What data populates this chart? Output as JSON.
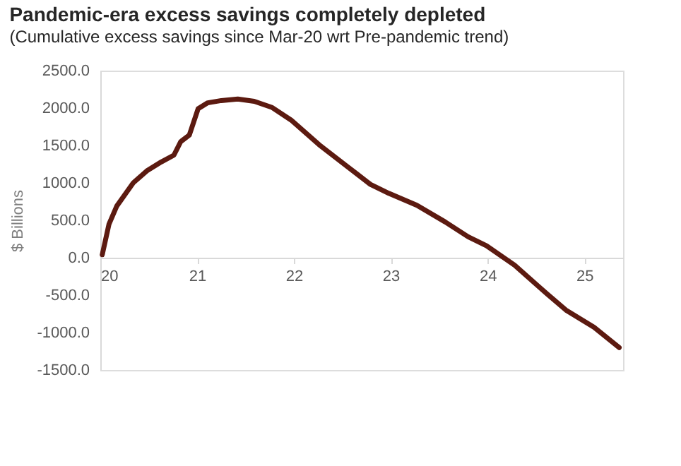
{
  "chart_data": {
    "type": "line",
    "title": "Pandemic-era excess savings completely depleted",
    "subtitle": "(Cumulative excess savings since Mar-20 wrt Pre-pandemic trend)",
    "ylabel": "$ Billions",
    "series": [
      {
        "color": "#5c1a10",
        "x": [
          20.02,
          20.09,
          20.17,
          20.34,
          20.48,
          20.63,
          20.76,
          20.83,
          20.92,
          21.01,
          21.11,
          21.25,
          21.42,
          21.59,
          21.77,
          21.97,
          22.26,
          22.55,
          22.79,
          22.98,
          23.27,
          23.56,
          23.8,
          23.99,
          24.28,
          24.62,
          24.81,
          25.1,
          25.36
        ],
        "values": [
          40,
          450,
          690,
          1000,
          1160,
          1280,
          1370,
          1550,
          1640,
          1990,
          2070,
          2100,
          2120,
          2090,
          2010,
          1840,
          1510,
          1220,
          980,
          860,
          700,
          480,
          280,
          160,
          -100,
          -490,
          -700,
          -930,
          -1200
        ]
      }
    ],
    "xlim": [
      20,
      25.4
    ],
    "xticks": [
      20,
      21,
      22,
      23,
      24,
      25
    ],
    "ylim": [
      -1500,
      2500
    ],
    "yticks": [
      {
        "value": -1500,
        "label": "-1500.0"
      },
      {
        "value": -1000,
        "label": "-1000.0"
      },
      {
        "value": -500,
        "label": "-500.0"
      },
      {
        "value": 0,
        "label": "0.0"
      },
      {
        "value": 500,
        "label": "500.0"
      },
      {
        "value": 1000,
        "label": "1000.0"
      },
      {
        "value": 1500,
        "label": "1500.0"
      },
      {
        "value": 2000,
        "label": "2000.0"
      },
      {
        "value": 2500,
        "label": "2500.0"
      }
    ],
    "grid": false,
    "marker": "none",
    "line_style": "solid"
  }
}
